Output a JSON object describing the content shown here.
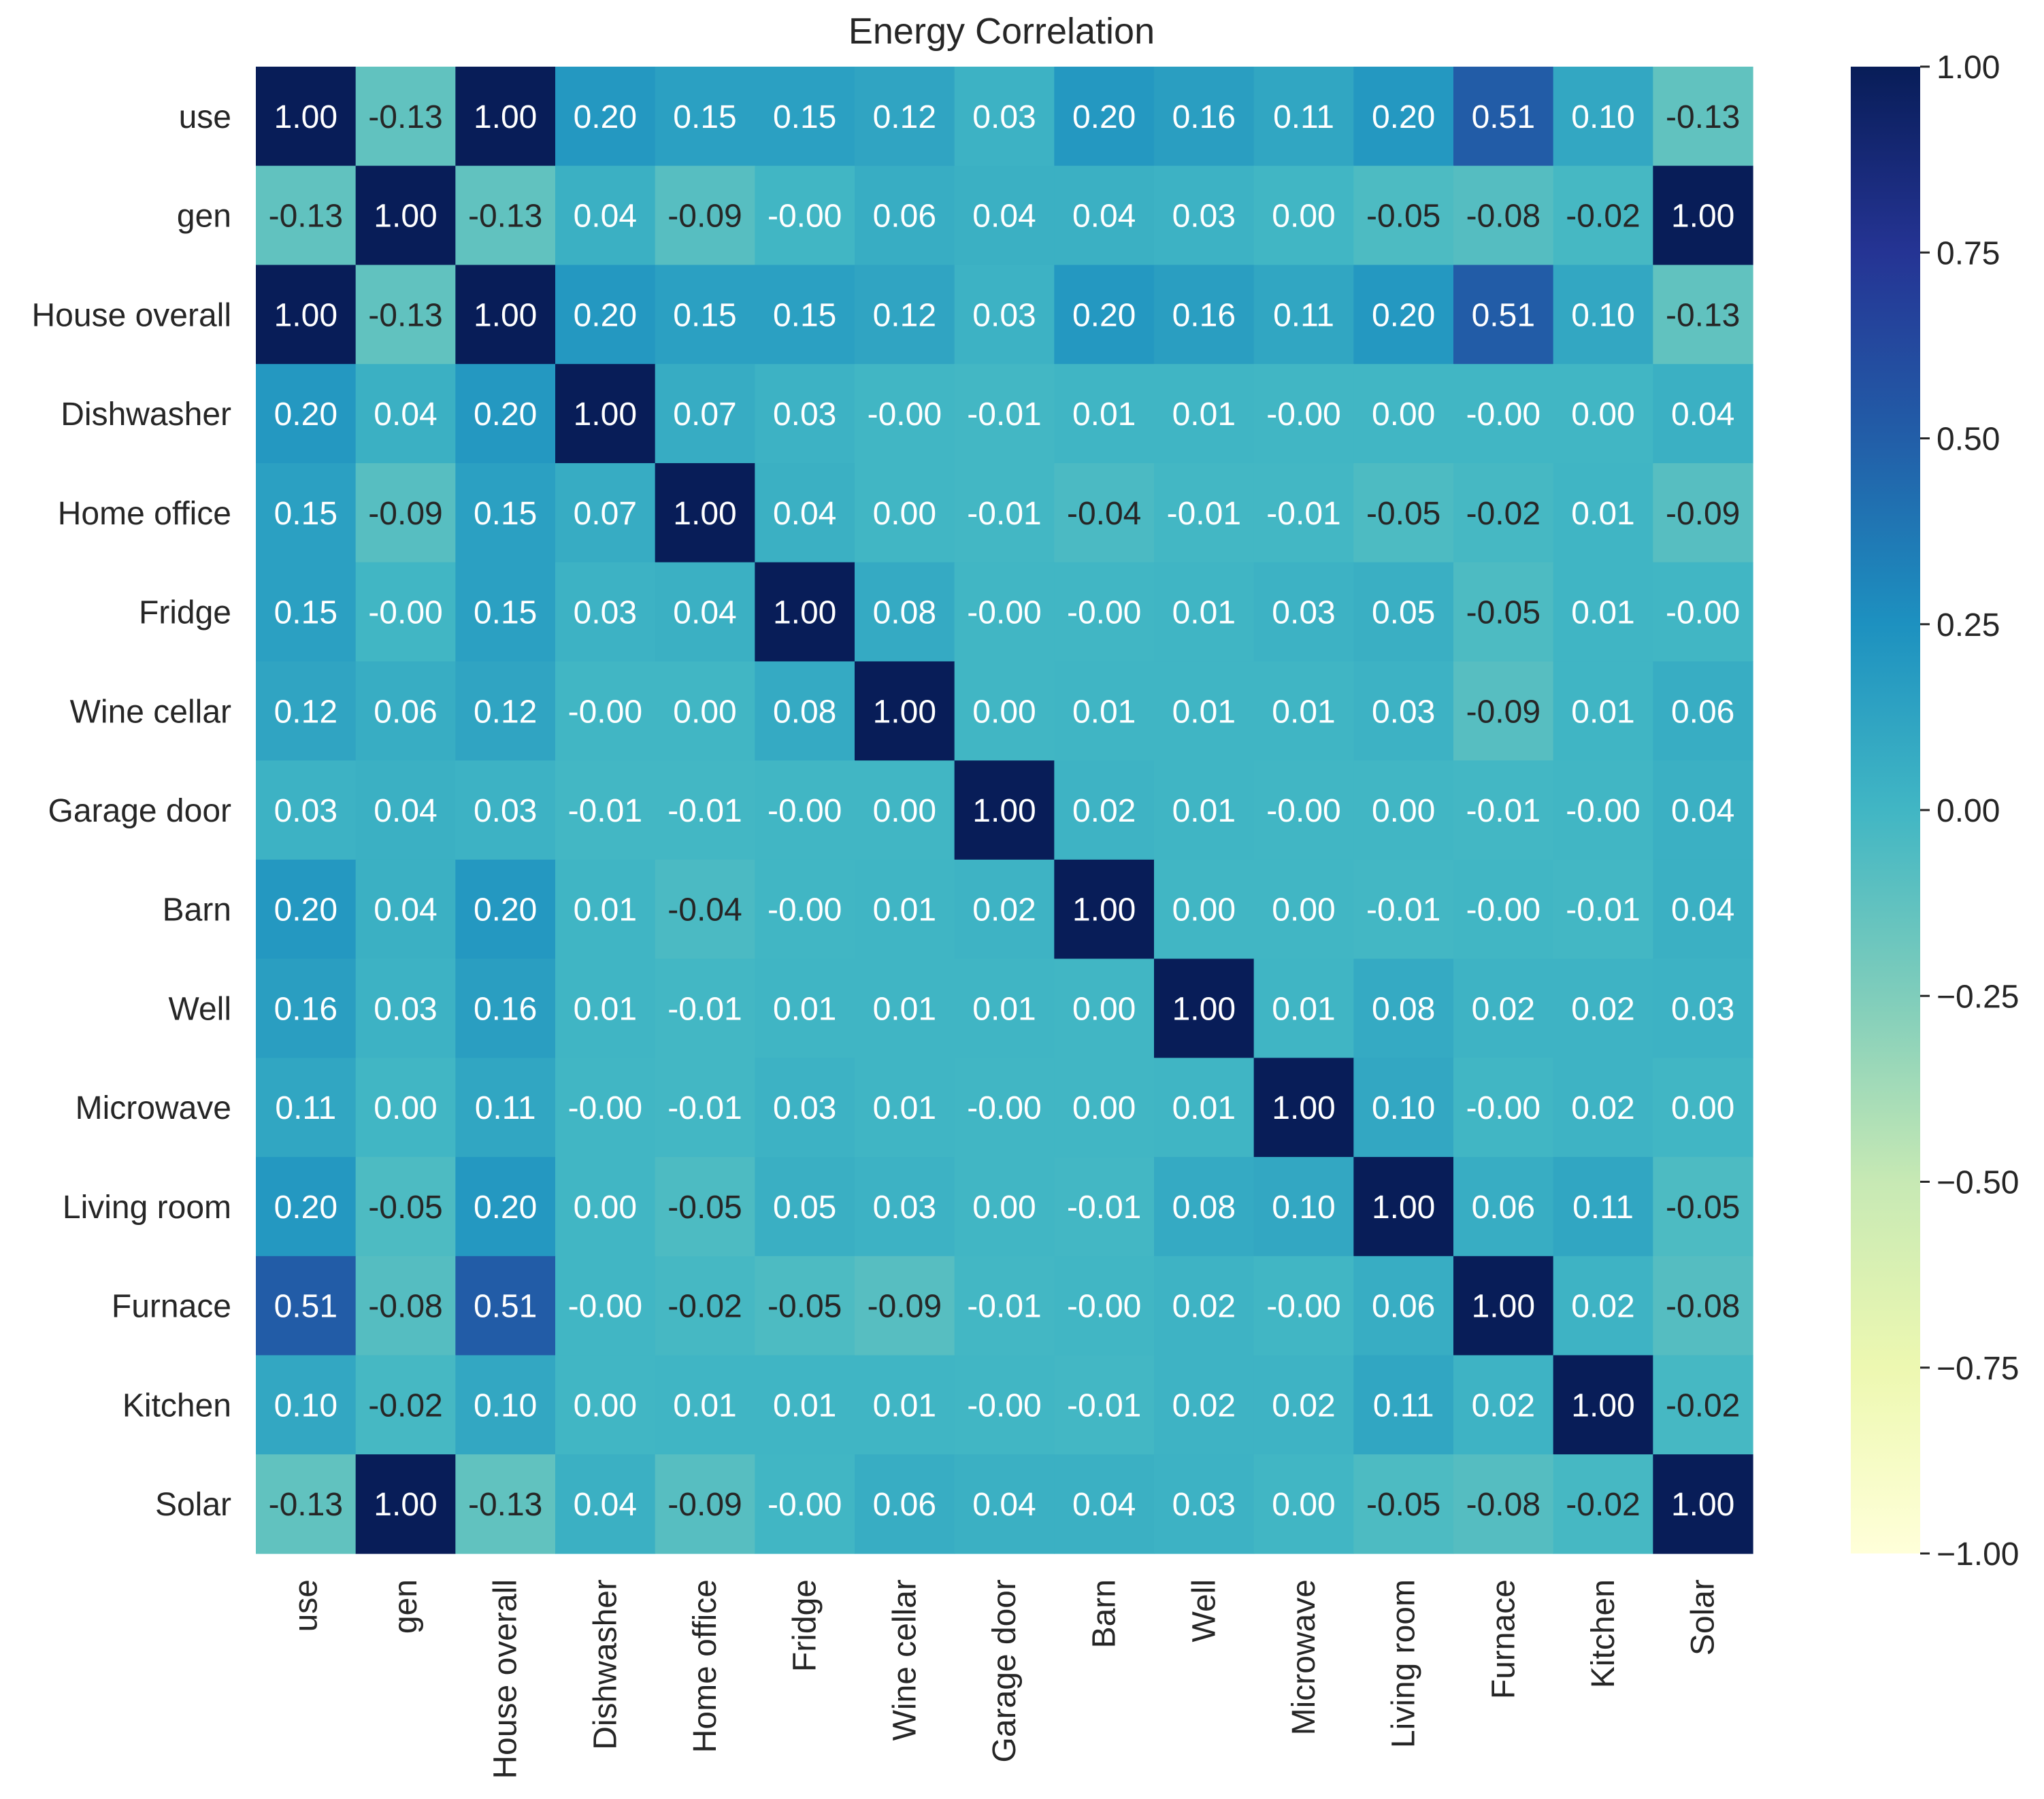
{
  "chart_data": {
    "type": "heatmap",
    "title": "Energy Correlation",
    "xlabel": "",
    "ylabel": "",
    "categories": [
      "use",
      "gen",
      "House overall",
      "Dishwasher",
      "Home office",
      "Fridge",
      "Wine cellar",
      "Garage door",
      "Barn",
      "Well",
      "Microwave",
      "Living room",
      "Furnace",
      "Kitchen",
      "Solar"
    ],
    "matrix": [
      [
        1.0,
        -0.13,
        1.0,
        0.2,
        0.15,
        0.15,
        0.12,
        0.03,
        0.2,
        0.16,
        0.11,
        0.2,
        0.51,
        0.1,
        -0.13
      ],
      [
        -0.13,
        1.0,
        -0.13,
        0.04,
        -0.09,
        -0.0,
        0.06,
        0.04,
        0.04,
        0.03,
        0.0,
        -0.05,
        -0.08,
        -0.02,
        1.0
      ],
      [
        1.0,
        -0.13,
        1.0,
        0.2,
        0.15,
        0.15,
        0.12,
        0.03,
        0.2,
        0.16,
        0.11,
        0.2,
        0.51,
        0.1,
        -0.13
      ],
      [
        0.2,
        0.04,
        0.2,
        1.0,
        0.07,
        0.03,
        -0.0,
        -0.01,
        0.01,
        0.01,
        -0.0,
        0.0,
        -0.0,
        0.0,
        0.04
      ],
      [
        0.15,
        -0.09,
        0.15,
        0.07,
        1.0,
        0.04,
        0.0,
        -0.01,
        -0.04,
        -0.01,
        -0.01,
        -0.05,
        -0.02,
        0.01,
        -0.09
      ],
      [
        0.15,
        -0.0,
        0.15,
        0.03,
        0.04,
        1.0,
        0.08,
        -0.0,
        -0.0,
        0.01,
        0.03,
        0.05,
        -0.05,
        0.01,
        -0.0
      ],
      [
        0.12,
        0.06,
        0.12,
        -0.0,
        0.0,
        0.08,
        1.0,
        0.0,
        0.01,
        0.01,
        0.01,
        0.03,
        -0.09,
        0.01,
        0.06
      ],
      [
        0.03,
        0.04,
        0.03,
        -0.01,
        -0.01,
        -0.0,
        0.0,
        1.0,
        0.02,
        0.01,
        -0.0,
        0.0,
        -0.01,
        -0.0,
        0.04
      ],
      [
        0.2,
        0.04,
        0.2,
        0.01,
        -0.04,
        -0.0,
        0.01,
        0.02,
        1.0,
        0.0,
        0.0,
        -0.01,
        -0.0,
        -0.01,
        0.04
      ],
      [
        0.16,
        0.03,
        0.16,
        0.01,
        -0.01,
        0.01,
        0.01,
        0.01,
        0.0,
        1.0,
        0.01,
        0.08,
        0.02,
        0.02,
        0.03
      ],
      [
        0.11,
        0.0,
        0.11,
        -0.0,
        -0.01,
        0.03,
        0.01,
        -0.0,
        0.0,
        0.01,
        1.0,
        0.1,
        -0.0,
        0.02,
        0.0
      ],
      [
        0.2,
        -0.05,
        0.2,
        0.0,
        -0.05,
        0.05,
        0.03,
        0.0,
        -0.01,
        0.08,
        0.1,
        1.0,
        0.06,
        0.11,
        -0.05
      ],
      [
        0.51,
        -0.08,
        0.51,
        -0.0,
        -0.02,
        -0.05,
        -0.09,
        -0.01,
        -0.0,
        0.02,
        -0.0,
        0.06,
        1.0,
        0.02,
        -0.08
      ],
      [
        0.1,
        -0.02,
        0.1,
        0.0,
        0.01,
        0.01,
        0.01,
        -0.0,
        -0.01,
        0.02,
        0.02,
        0.11,
        0.02,
        1.0,
        -0.02
      ],
      [
        -0.13,
        1.0,
        -0.13,
        0.04,
        -0.09,
        -0.0,
        0.06,
        0.04,
        0.04,
        0.03,
        0.0,
        -0.05,
        -0.08,
        -0.02,
        1.0
      ]
    ],
    "cell_labels": [
      [
        "1.00",
        "-0.13",
        "1.00",
        "0.20",
        "0.15",
        "0.15",
        "0.12",
        "0.03",
        "0.20",
        "0.16",
        "0.11",
        "0.20",
        "0.51",
        "0.10",
        "-0.13"
      ],
      [
        "-0.13",
        "1.00",
        "-0.13",
        "0.04",
        "-0.09",
        "-0.00",
        "0.06",
        "0.04",
        "0.04",
        "0.03",
        "0.00",
        "-0.05",
        "-0.08",
        "-0.02",
        "1.00"
      ],
      [
        "1.00",
        "-0.13",
        "1.00",
        "0.20",
        "0.15",
        "0.15",
        "0.12",
        "0.03",
        "0.20",
        "0.16",
        "0.11",
        "0.20",
        "0.51",
        "0.10",
        "-0.13"
      ],
      [
        "0.20",
        "0.04",
        "0.20",
        "1.00",
        "0.07",
        "0.03",
        "-0.00",
        "-0.01",
        "0.01",
        "0.01",
        "-0.00",
        "0.00",
        "-0.00",
        "0.00",
        "0.04"
      ],
      [
        "0.15",
        "-0.09",
        "0.15",
        "0.07",
        "1.00",
        "0.04",
        "0.00",
        "-0.01",
        "-0.04",
        "-0.01",
        "-0.01",
        "-0.05",
        "-0.02",
        "0.01",
        "-0.09"
      ],
      [
        "0.15",
        "-0.00",
        "0.15",
        "0.03",
        "0.04",
        "1.00",
        "0.08",
        "-0.00",
        "-0.00",
        "0.01",
        "0.03",
        "0.05",
        "-0.05",
        "0.01",
        "-0.00"
      ],
      [
        "0.12",
        "0.06",
        "0.12",
        "-0.00",
        "0.00",
        "0.08",
        "1.00",
        "0.00",
        "0.01",
        "0.01",
        "0.01",
        "0.03",
        "-0.09",
        "0.01",
        "0.06"
      ],
      [
        "0.03",
        "0.04",
        "0.03",
        "-0.01",
        "-0.01",
        "-0.00",
        "0.00",
        "1.00",
        "0.02",
        "0.01",
        "-0.00",
        "0.00",
        "-0.01",
        "-0.00",
        "0.04"
      ],
      [
        "0.20",
        "0.04",
        "0.20",
        "0.01",
        "-0.04",
        "-0.00",
        "0.01",
        "0.02",
        "1.00",
        "0.00",
        "0.00",
        "-0.01",
        "-0.00",
        "-0.01",
        "0.04"
      ],
      [
        "0.16",
        "0.03",
        "0.16",
        "0.01",
        "-0.01",
        "0.01",
        "0.01",
        "0.01",
        "0.00",
        "1.00",
        "0.01",
        "0.08",
        "0.02",
        "0.02",
        "0.03"
      ],
      [
        "0.11",
        "0.00",
        "0.11",
        "-0.00",
        "-0.01",
        "0.03",
        "0.01",
        "-0.00",
        "0.00",
        "0.01",
        "1.00",
        "0.10",
        "-0.00",
        "0.02",
        "0.00"
      ],
      [
        "0.20",
        "-0.05",
        "0.20",
        "0.00",
        "-0.05",
        "0.05",
        "0.03",
        "0.00",
        "-0.01",
        "0.08",
        "0.10",
        "1.00",
        "0.06",
        "0.11",
        "-0.05"
      ],
      [
        "0.51",
        "-0.08",
        "0.51",
        "-0.00",
        "-0.02",
        "-0.05",
        "-0.09",
        "-0.01",
        "-0.00",
        "0.02",
        "-0.00",
        "0.06",
        "1.00",
        "0.02",
        "-0.08"
      ],
      [
        "0.10",
        "-0.02",
        "0.10",
        "0.00",
        "0.01",
        "0.01",
        "0.01",
        "-0.00",
        "-0.01",
        "0.02",
        "0.02",
        "0.11",
        "0.02",
        "1.00",
        "-0.02"
      ],
      [
        "-0.13",
        "1.00",
        "-0.13",
        "0.04",
        "-0.09",
        "-0.00",
        "0.06",
        "0.04",
        "0.04",
        "0.03",
        "0.00",
        "-0.05",
        "-0.08",
        "-0.02",
        "1.00"
      ]
    ],
    "colorbar": {
      "range": [
        -1.0,
        1.0
      ],
      "ticks": [
        1.0,
        0.75,
        0.5,
        0.25,
        0.0,
        -0.25,
        -0.5,
        -0.75,
        -1.0
      ],
      "tick_labels": [
        "1.00",
        "0.75",
        "0.50",
        "0.25",
        "0.00",
        "−0.25",
        "−0.50",
        "−0.75",
        "−1.00"
      ],
      "colormap": "YlGnBu",
      "colors": [
        "#ffffd9",
        "#edf8b1",
        "#c7e9b4",
        "#7fcdbb",
        "#41b6c4",
        "#1d91c0",
        "#225ea8",
        "#253494",
        "#081d58"
      ]
    },
    "grid": false,
    "legend": "colorbar-right"
  }
}
